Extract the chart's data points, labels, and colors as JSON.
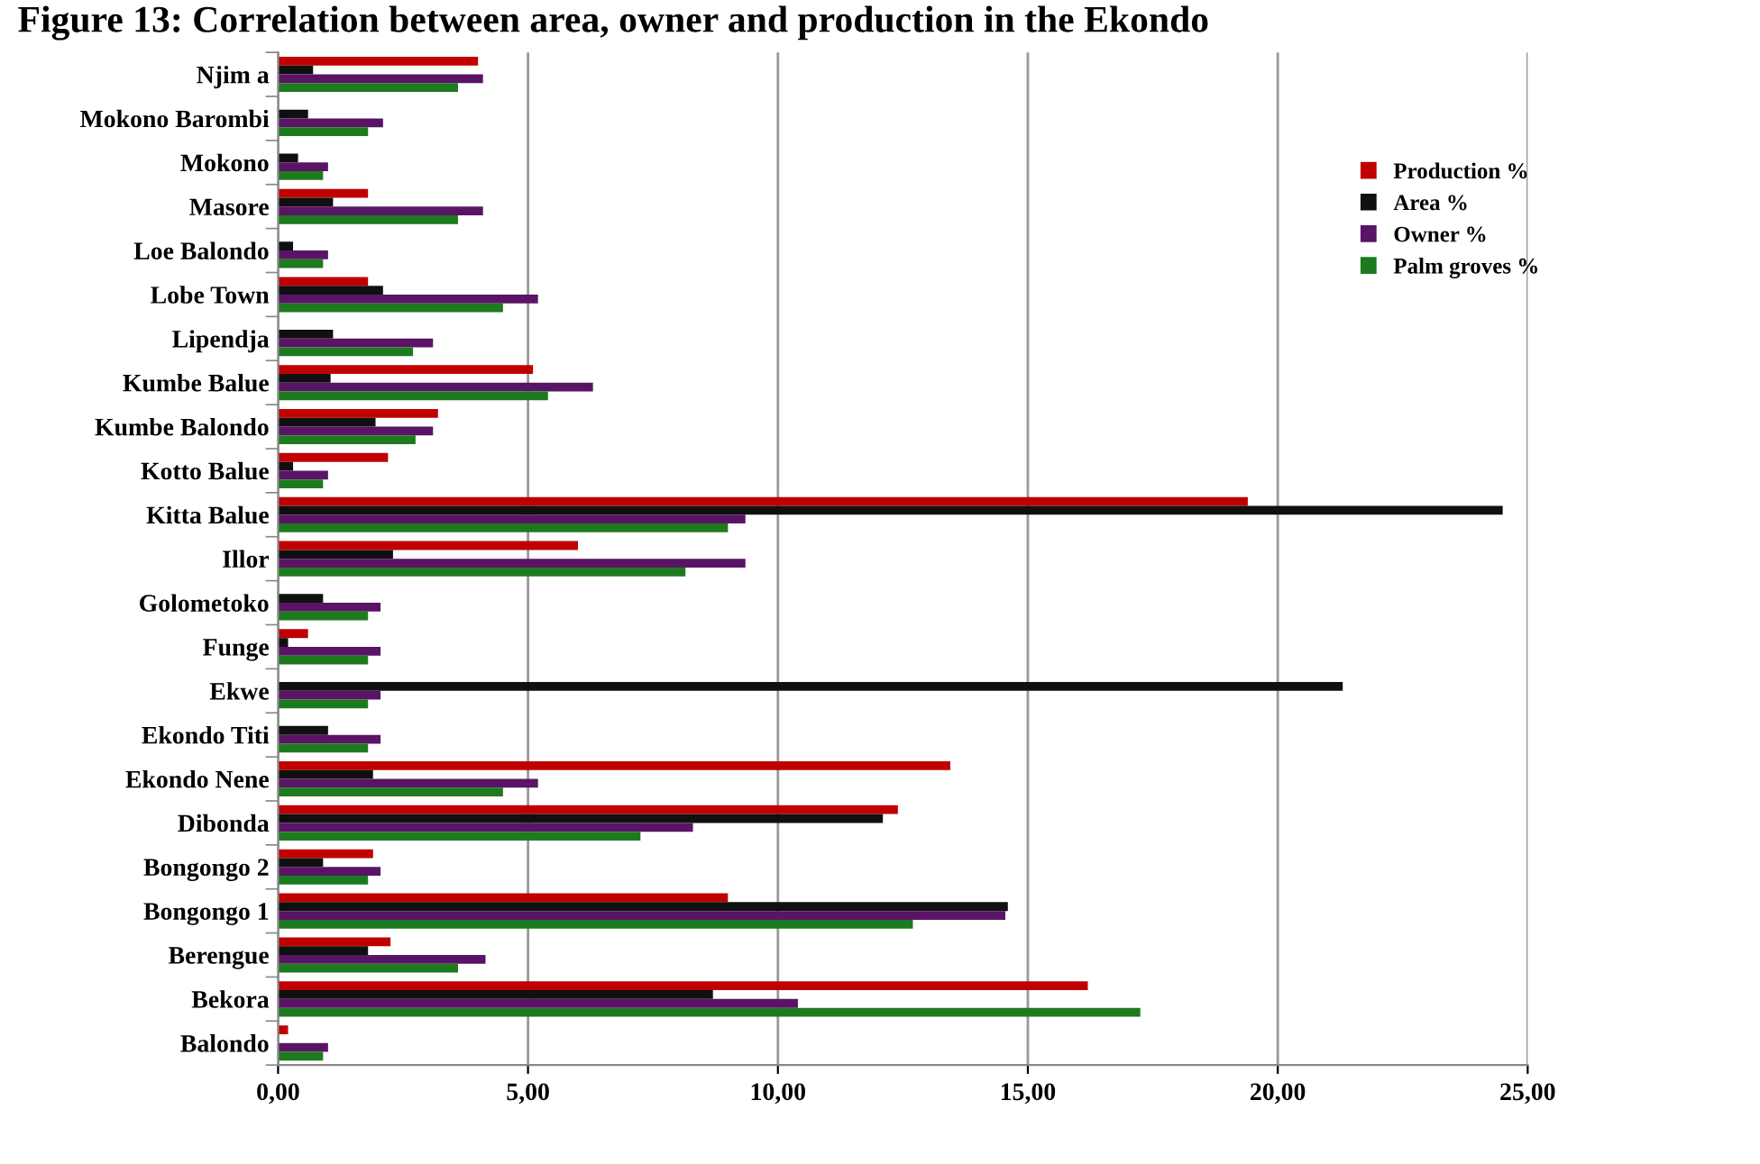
{
  "chart_data": {
    "type": "bar",
    "orientation": "horizontal",
    "title": "Figure 13: Correlation between area, owner and production in the Ekondo",
    "categories": [
      "Njim a",
      "Mokono Barombi",
      "Mokono",
      "Masore",
      "Loe Balondo",
      "Lobe Town",
      "Lipendja",
      "Kumbe Balue",
      "Kumbe Balondo",
      "Kotto Balue",
      "Kitta Balue",
      "Illor",
      "Golometoko",
      "Funge",
      "Ekwe",
      "Ekondo Titi",
      "Ekondo Nene",
      "Dibonda",
      "Bongongo 2",
      "Bongongo 1",
      "Berengue",
      "Bekora",
      "Balondo"
    ],
    "series": [
      {
        "name": "Production %",
        "color": "#c00000",
        "values": [
          4.0,
          0,
          0,
          1.8,
          0,
          1.8,
          0,
          5.1,
          3.2,
          2.2,
          19.4,
          6.0,
          0,
          0.6,
          0,
          0,
          13.45,
          12.4,
          1.9,
          9.0,
          2.25,
          16.2,
          0.2
        ]
      },
      {
        "name": "Area %",
        "color": "#101010",
        "values": [
          0.7,
          0.6,
          0.4,
          1.1,
          0.3,
          2.1,
          1.1,
          1.05,
          1.95,
          0.3,
          24.5,
          2.3,
          0.9,
          0.2,
          21.3,
          1.0,
          1.9,
          12.1,
          0.9,
          14.6,
          1.8,
          8.7,
          0
        ]
      },
      {
        "name": "Owner %",
        "color": "#5a1466",
        "values": [
          4.1,
          2.1,
          1.0,
          4.1,
          1.0,
          5.2,
          3.1,
          6.3,
          3.1,
          1.0,
          9.35,
          9.35,
          2.05,
          2.05,
          2.05,
          2.05,
          5.2,
          8.3,
          2.05,
          14.55,
          4.15,
          10.4,
          1.0
        ]
      },
      {
        "name": "Palm groves %",
        "color": "#1e7a1e",
        "values": [
          3.6,
          1.8,
          0.9,
          3.6,
          0.9,
          4.5,
          2.7,
          5.4,
          2.75,
          0.9,
          9.0,
          8.15,
          1.8,
          1.8,
          1.8,
          1.8,
          4.5,
          7.25,
          1.8,
          12.7,
          3.6,
          17.25,
          0.9
        ]
      }
    ],
    "xlim": [
      0,
      25
    ],
    "xticks": [
      {
        "value": 0,
        "label": "0,00"
      },
      {
        "value": 5,
        "label": "5,00"
      },
      {
        "value": 10,
        "label": "10,00"
      },
      {
        "value": 15,
        "label": "15,00"
      },
      {
        "value": 20,
        "label": "20,00"
      },
      {
        "value": 25,
        "label": "25,00"
      }
    ],
    "grid": "x",
    "legend": "top right"
  }
}
